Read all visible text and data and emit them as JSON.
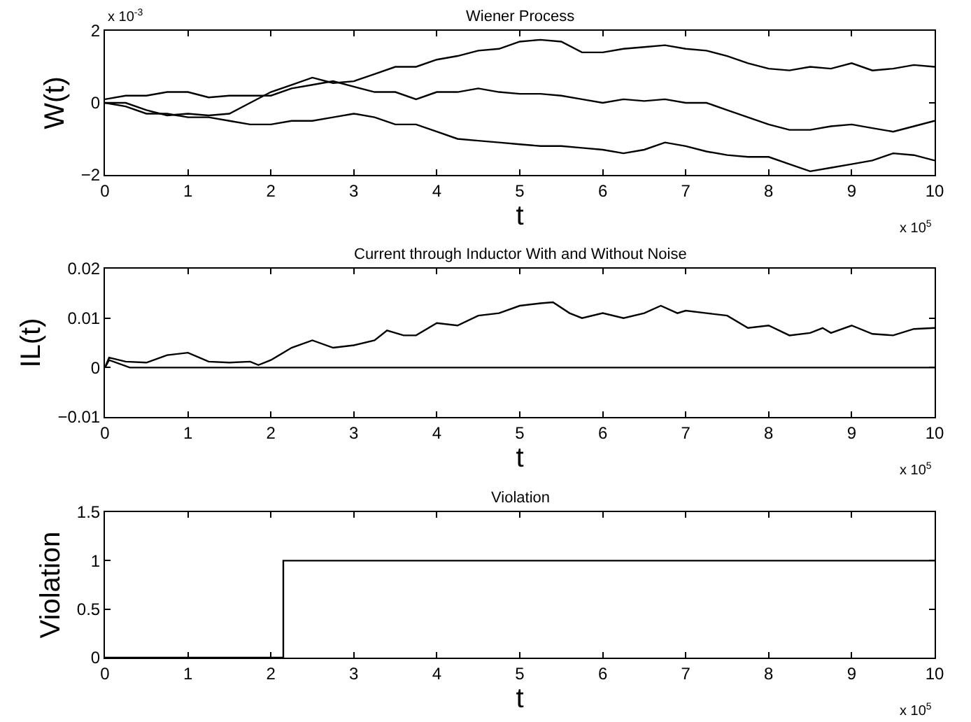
{
  "chart_data": [
    {
      "type": "line",
      "title": "Wiener Process",
      "xlabel": "t",
      "ylabel": "W(t)",
      "annotations": [
        "x 10$^{-3}$",
        "x 10$^{5}$"
      ],
      "xlim": [
        0,
        10
      ],
      "xticks": [
        0,
        1,
        2,
        3,
        4,
        5,
        6,
        7,
        8,
        9,
        10
      ],
      "ylim": [
        -2,
        2
      ],
      "yticks": [
        -2,
        0,
        2
      ],
      "x": [
        0,
        0.25,
        0.5,
        0.75,
        1,
        1.25,
        1.5,
        1.75,
        2,
        2.25,
        2.5,
        2.75,
        3,
        3.25,
        3.5,
        3.75,
        4,
        4.25,
        4.5,
        4.75,
        5,
        5.25,
        5.5,
        5.75,
        6,
        6.25,
        6.5,
        6.75,
        7,
        7.25,
        7.5,
        7.75,
        8,
        8.25,
        8.5,
        8.75,
        9,
        9.25,
        9.5,
        9.75,
        10
      ],
      "series": [
        {
          "color": "#000000",
          "values": [
            0,
            0.0,
            -0.2,
            -0.35,
            -0.3,
            -0.35,
            -0.3,
            0,
            0.3,
            0.5,
            0.7,
            0.55,
            0.6,
            0.8,
            1.0,
            1.0,
            1.2,
            1.3,
            1.45,
            1.5,
            1.7,
            1.75,
            1.7,
            1.4,
            1.4,
            1.5,
            1.55,
            1.6,
            1.5,
            1.45,
            1.3,
            1.1,
            0.95,
            0.9,
            1.0,
            0.95,
            1.1,
            0.9,
            0.95,
            1.05,
            1.0
          ]
        },
        {
          "color": "#000000",
          "values": [
            0.1,
            0.2,
            0.2,
            0.3,
            0.3,
            0.15,
            0.2,
            0.2,
            0.2,
            0.4,
            0.5,
            0.6,
            0.45,
            0.3,
            0.3,
            0.1,
            0.3,
            0.3,
            0.4,
            0.3,
            0.25,
            0.25,
            0.2,
            0.1,
            0.0,
            0.1,
            0.05,
            0.1,
            0.0,
            0.0,
            -0.2,
            -0.4,
            -0.6,
            -0.75,
            -0.75,
            -0.65,
            -0.6,
            -0.7,
            -0.8,
            -0.65,
            -0.5
          ]
        },
        {
          "color": "#000000",
          "values": [
            0,
            -0.1,
            -0.3,
            -0.3,
            -0.4,
            -0.4,
            -0.5,
            -0.6,
            -0.6,
            -0.5,
            -0.5,
            -0.4,
            -0.3,
            -0.4,
            -0.6,
            -0.6,
            -0.8,
            -1.0,
            -1.05,
            -1.1,
            -1.15,
            -1.2,
            -1.2,
            -1.25,
            -1.3,
            -1.4,
            -1.3,
            -1.1,
            -1.2,
            -1.35,
            -1.45,
            -1.5,
            -1.5,
            -1.7,
            -1.9,
            -1.8,
            -1.7,
            -1.6,
            -1.4,
            -1.45,
            -1.6
          ]
        }
      ]
    },
    {
      "type": "line",
      "title": "Current through Inductor With and Without Noise",
      "xlabel": "t",
      "ylabel": "IL(t)",
      "annotations": [
        "x 10$^{5}$"
      ],
      "xlim": [
        0,
        10
      ],
      "xticks": [
        0,
        1,
        2,
        3,
        4,
        5,
        6,
        7,
        8,
        9,
        10
      ],
      "ylim": [
        -0.01,
        0.02
      ],
      "yticks": [
        -0.01,
        0,
        0.01,
        0.02
      ],
      "series": [
        {
          "color": "#000000",
          "x": [
            0,
            0.05,
            0.25,
            0.5,
            0.75,
            1,
            1.25,
            1.5,
            1.75,
            1.85,
            2,
            2.25,
            2.5,
            2.75,
            3,
            3.25,
            3.4,
            3.6,
            3.75,
            4,
            4.25,
            4.5,
            4.75,
            5,
            5.25,
            5.4,
            5.6,
            5.75,
            6,
            6.25,
            6.5,
            6.7,
            6.9,
            7,
            7.25,
            7.5,
            7.75,
            8,
            8.25,
            8.5,
            8.65,
            8.75,
            9,
            9.25,
            9.5,
            9.75,
            10
          ],
          "values": [
            0,
            0.002,
            0.0012,
            0.001,
            0.0025,
            0.003,
            0.0012,
            0.001,
            0.0012,
            0.0005,
            0.0015,
            0.004,
            0.0055,
            0.004,
            0.0045,
            0.0055,
            0.0075,
            0.0065,
            0.0065,
            0.009,
            0.0085,
            0.0105,
            0.011,
            0.0125,
            0.013,
            0.0132,
            0.011,
            0.01,
            0.011,
            0.01,
            0.011,
            0.0125,
            0.011,
            0.0115,
            0.011,
            0.0105,
            0.008,
            0.0085,
            0.0065,
            0.007,
            0.008,
            0.007,
            0.0085,
            0.0068,
            0.0065,
            0.0078,
            0.008
          ]
        },
        {
          "color": "#000000",
          "x": [
            0,
            0.05,
            0.3,
            10
          ],
          "values": [
            0,
            0.0015,
            0,
            0
          ]
        }
      ]
    },
    {
      "type": "step",
      "title": "Violation",
      "xlabel": "t",
      "ylabel": "Violation",
      "annotations": [
        "x 10$^{5}$"
      ],
      "xlim": [
        0,
        10
      ],
      "xticks": [
        0,
        1,
        2,
        3,
        4,
        5,
        6,
        7,
        8,
        9,
        10
      ],
      "ylim": [
        0,
        1.5
      ],
      "yticks": [
        0,
        0.5,
        1,
        1.5
      ],
      "x": [
        0,
        2.15,
        10
      ],
      "series": [
        {
          "color": "#000000",
          "values": [
            0,
            1,
            1
          ]
        }
      ]
    }
  ]
}
